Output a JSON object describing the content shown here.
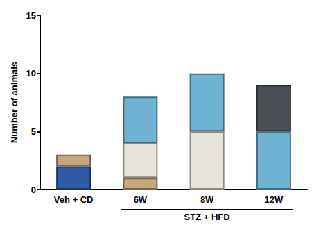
{
  "chart_data": {
    "type": "bar",
    "stacked": true,
    "grid": false,
    "y_label": "Number of animals",
    "categories": [
      "Veh + CD",
      "6W",
      "8W",
      "12W"
    ],
    "series": [
      {
        "color": "#2f5aa8",
        "values": [
          2,
          null,
          null,
          null
        ]
      },
      {
        "color": "#c4a77d",
        "values": [
          1,
          1,
          null,
          null
        ]
      },
      {
        "color": "#e6e3db",
        "values": [
          null,
          3,
          5,
          null
        ]
      },
      {
        "color": "#6fb3d4",
        "values": [
          null,
          4,
          5,
          5
        ]
      },
      {
        "color": "#4b5057",
        "values": [
          null,
          null,
          null,
          4
        ]
      }
    ],
    "ylim": [
      0,
      15
    ],
    "yticks": [
      0,
      5,
      10,
      15
    ],
    "annotations": [
      {
        "text": "STZ + HFD",
        "from": "6W",
        "to": "12W"
      }
    ]
  }
}
